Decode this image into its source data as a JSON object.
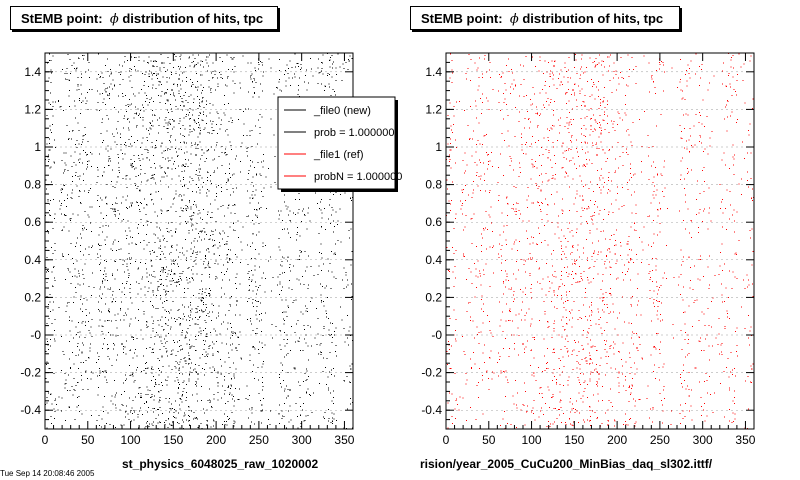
{
  "panels": [
    {
      "title_prefix": "StEMB point:",
      "title_phi": "ϕ",
      "title_suffix": "distribution of hits, tpc",
      "file_label": "st_physics_6048025_raw_1020002",
      "color": "#000000"
    },
    {
      "title_prefix": "StEMB point:",
      "title_phi": "ϕ",
      "title_suffix": "distribution of hits, tpc",
      "file_label": "rision/year_2005_CuCu200_MinBias_daq_sl302.ittf/",
      "color": "#ff0000"
    }
  ],
  "legend": [
    {
      "label": "_file0 (new)",
      "color": "#000000"
    },
    {
      "label": "prob = 1.000000",
      "color": "#000000"
    },
    {
      "label": "_file1 (ref)",
      "color": "#ff0000"
    },
    {
      "label": "probN = 1.000000",
      "color": "#ff0000"
    }
  ],
  "footer": "Tue Sep 14 20:08:46 2005",
  "chart_data": [
    {
      "type": "scatter",
      "title": "StEMB point:  ϕ distribution of hits, tpc",
      "xlim": [
        0,
        360
      ],
      "ylim": [
        -0.5,
        1.5
      ],
      "xticks": [
        "0",
        "50",
        "100",
        "150",
        "200",
        "250",
        "300",
        "350"
      ],
      "yticks": [
        "-0.4",
        "-0.2",
        "-0",
        "0.2",
        "0.4",
        "0.6",
        "0.8",
        "1",
        "1.2",
        "1.4"
      ],
      "series": [
        {
          "name": "_file0 (new)",
          "color": "#000000"
        }
      ],
      "density_note": "dense uniform hits across y; density peaks near x=150-200, vertical gaps near x=260-270, 315, 345"
    },
    {
      "type": "scatter",
      "title": "StEMB point:  ϕ distribution of hits, tpc",
      "xlim": [
        0,
        360
      ],
      "ylim": [
        -0.5,
        1.5
      ],
      "xticks": [
        "0",
        "50",
        "100",
        "150",
        "200",
        "250",
        "300",
        "350"
      ],
      "yticks": [
        "-0.4",
        "-0.2",
        "-0",
        "0.2",
        "0.4",
        "0.6",
        "0.8",
        "1",
        "1.2",
        "1.4"
      ],
      "series": [
        {
          "name": "_file1 (ref)",
          "color": "#ff0000"
        }
      ],
      "density_note": "dense uniform hits across y; density peaks near x=150-200, vertical gaps near x=260-270, 315, 345"
    }
  ]
}
